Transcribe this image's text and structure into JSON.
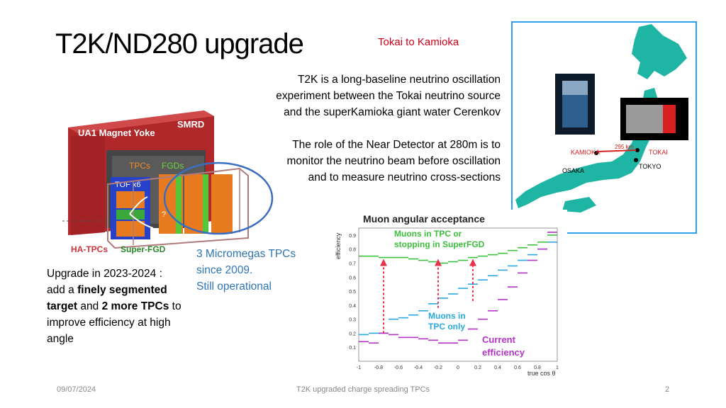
{
  "slide": {
    "title": "T2K/ND280 upgrade",
    "tokai_label": "Tokai to Kamioka",
    "desc_lines_1": [
      "T2K is a long-baseline neutrino oscillation",
      "experiment between the Tokai neutrino source",
      "and the superKamioka giant water Cerenkov"
    ],
    "desc_lines_2": [
      "The role of the Near Detector at 280m is to",
      "monitor the neutrino beam before oscillation",
      "and to measure neutrino cross-sections"
    ],
    "micromegas_lines": [
      "3 Micromegas TPCs",
      "since 2009.",
      "Still operational"
    ],
    "upgrade": {
      "line1": "Upgrade in 2023-2024 :",
      "pre": "add a ",
      "bold1": "finely segmented target",
      "mid": " and ",
      "bold2": "2 more TPCs",
      "post": " to improve efficiency at high angle"
    }
  },
  "detector_labels": {
    "yoke": "UA1 Magnet Yoke",
    "smrd": "SMRD",
    "tpcs": "TPCs",
    "fgds": "FGDs",
    "tof": "TOF x6",
    "hatpcs": "HA-TPCs",
    "superfgd": "Super-FGD",
    "question": "?"
  },
  "map_labels": {
    "distance": "295 km",
    "kamioka": "KAMIOKA",
    "tokai": "TOKAI",
    "tokyo": "TOKYO",
    "osaka": "OSAKA"
  },
  "colors": {
    "title": "#000000",
    "tokai_label": "#d0021b",
    "micromegas": "#2e75b6",
    "map_border": "#2f9ff0",
    "japan": "#1fb5a5",
    "ellipse": "#3b6ec0",
    "series_tpc_only": "#29a8e0",
    "series_current": "#b532c8",
    "series_upgrade": "#3cbf3c",
    "arrows": "#e8334a"
  },
  "chart_data": {
    "type": "scatter",
    "title": "Muon angular acceptance",
    "xlabel": "true cos θ",
    "ylabel": "efficiency",
    "xlim": [
      -1,
      1
    ],
    "ylim": [
      0,
      0.95
    ],
    "xticks": [
      "-1",
      "-0.8",
      "-0.6",
      "-0.4",
      "-0.2",
      "0",
      "0.2",
      "0.4",
      "0.6",
      "0.8",
      "1"
    ],
    "yticks": [
      "0.1",
      "0.2",
      "0.3",
      "0.4",
      "0.5",
      "0.6",
      "0.7",
      "0.8",
      "0.9"
    ],
    "annotations": {
      "upgrade": "Muons in TPC or stopping in SuperFGD",
      "tpc_only": "Muons in TPC only",
      "current": "Current efficiency"
    },
    "series": [
      {
        "name": "Muons in TPC or stopping in SuperFGD",
        "color": "#3cbf3c",
        "x": [
          -0.95,
          -0.85,
          -0.75,
          -0.65,
          -0.55,
          -0.45,
          -0.35,
          -0.25,
          -0.15,
          -0.05,
          0.05,
          0.15,
          0.25,
          0.35,
          0.45,
          0.55,
          0.65,
          0.75,
          0.85,
          0.95
        ],
        "y": [
          0.75,
          0.75,
          0.74,
          0.74,
          0.74,
          0.73,
          0.72,
          0.71,
          0.7,
          0.71,
          0.72,
          0.74,
          0.75,
          0.76,
          0.77,
          0.79,
          0.81,
          0.83,
          0.85,
          0.9
        ]
      },
      {
        "name": "Muons in TPC only",
        "color": "#29a8e0",
        "x": [
          -0.95,
          -0.85,
          -0.75,
          -0.65,
          -0.55,
          -0.45,
          -0.35,
          -0.25,
          -0.15,
          -0.05,
          0.05,
          0.15,
          0.25,
          0.35,
          0.45,
          0.55,
          0.65,
          0.75,
          0.85,
          0.95
        ],
        "y": [
          0.19,
          0.2,
          0.2,
          0.3,
          0.31,
          0.33,
          0.36,
          0.41,
          0.45,
          0.48,
          0.52,
          0.55,
          0.58,
          0.61,
          0.65,
          0.68,
          0.72,
          0.76,
          0.8,
          0.85
        ]
      },
      {
        "name": "Current efficiency",
        "color": "#b532c8",
        "x": [
          -0.95,
          -0.85,
          -0.75,
          -0.65,
          -0.55,
          -0.45,
          -0.35,
          -0.25,
          -0.15,
          -0.05,
          0.05,
          0.15,
          0.25,
          0.35,
          0.45,
          0.55,
          0.65,
          0.75,
          0.85,
          0.95
        ],
        "y": [
          0.14,
          0.13,
          0.2,
          0.19,
          0.17,
          0.17,
          0.16,
          0.15,
          0.13,
          0.13,
          0.15,
          0.23,
          0.3,
          0.36,
          0.44,
          0.53,
          0.63,
          0.72,
          0.8,
          0.92
        ]
      }
    ]
  },
  "footer": {
    "date": "09/07/2024",
    "title": "T2K upgraded charge spreading TPCs",
    "page": "2"
  }
}
